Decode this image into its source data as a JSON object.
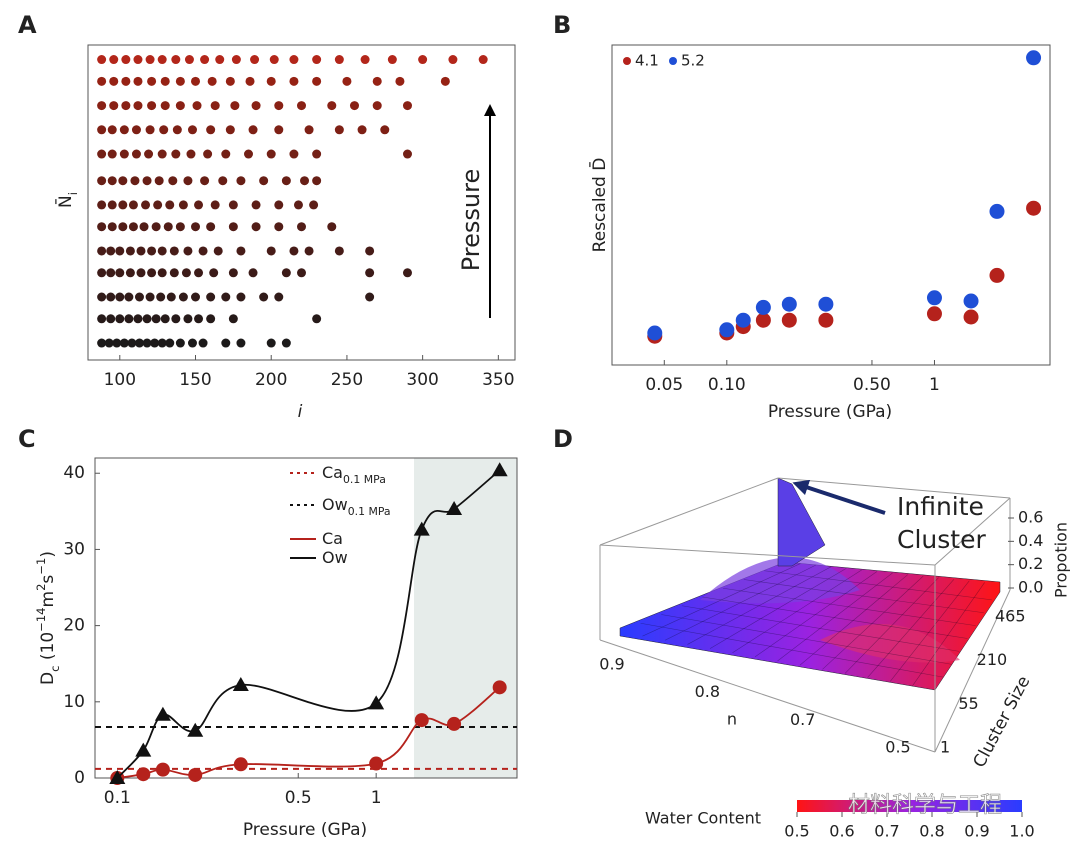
{
  "chart_data": [
    {
      "panel": "A",
      "type": "scatter",
      "xlabel": "i",
      "ylabel": [
        "N̄",
        "i"
      ],
      "annotation": "Pressure",
      "xlim": [
        79,
        361
      ],
      "xticks": [
        100,
        150,
        200,
        250,
        300,
        350
      ],
      "ylim": [
        0,
        13
      ],
      "series": [
        {
          "color": "#1c1a1a",
          "x": [
            88,
            93,
            98,
            103,
            108,
            113,
            118,
            123,
            128,
            133,
            140,
            148,
            155,
            170,
            180,
            200,
            210
          ],
          "values": [
            0.7,
            0.7,
            0.7,
            0.7,
            0.7,
            0.7,
            0.7,
            0.7,
            0.7,
            0.7,
            0.7,
            0.7,
            0.7,
            0.7,
            0.7,
            0.7,
            0.7
          ]
        },
        {
          "color": "#261a19",
          "x": [
            88,
            94,
            100,
            106,
            112,
            118,
            124,
            130,
            137,
            145,
            152,
            160,
            175,
            230
          ],
          "values": [
            1.7,
            1.7,
            1.7,
            1.7,
            1.7,
            1.7,
            1.7,
            1.7,
            1.7,
            1.7,
            1.7,
            1.7,
            1.7,
            1.7
          ]
        },
        {
          "color": "#311b19",
          "x": [
            88,
            94,
            100,
            106,
            113,
            120,
            127,
            134,
            142,
            150,
            160,
            170,
            180,
            195,
            205,
            265
          ],
          "values": [
            2.6,
            2.6,
            2.6,
            2.6,
            2.6,
            2.6,
            2.6,
            2.6,
            2.6,
            2.6,
            2.6,
            2.6,
            2.6,
            2.6,
            2.6,
            2.6
          ]
        },
        {
          "color": "#3c1b18",
          "x": [
            88,
            94,
            100,
            107,
            114,
            121,
            128,
            136,
            144,
            152,
            162,
            175,
            188,
            210,
            220,
            265,
            290
          ],
          "values": [
            3.6,
            3.6,
            3.6,
            3.6,
            3.6,
            3.6,
            3.6,
            3.6,
            3.6,
            3.6,
            3.6,
            3.6,
            3.6,
            3.6,
            3.6,
            3.6,
            3.6
          ]
        },
        {
          "color": "#471c18",
          "x": [
            88,
            94,
            100,
            107,
            114,
            121,
            128,
            136,
            145,
            155,
            165,
            180,
            200,
            215,
            225,
            245,
            265
          ],
          "values": [
            4.5,
            4.5,
            4.5,
            4.5,
            4.5,
            4.5,
            4.5,
            4.5,
            4.5,
            4.5,
            4.5,
            4.5,
            4.5,
            4.5,
            4.5,
            4.5,
            4.5
          ]
        },
        {
          "color": "#521d17",
          "x": [
            88,
            95,
            102,
            109,
            116,
            124,
            132,
            140,
            150,
            160,
            175,
            190,
            205,
            220,
            240
          ],
          "values": [
            5.5,
            5.5,
            5.5,
            5.5,
            5.5,
            5.5,
            5.5,
            5.5,
            5.5,
            5.5,
            5.5,
            5.5,
            5.5,
            5.5,
            5.5
          ]
        },
        {
          "color": "#5d1e17",
          "x": [
            88,
            95,
            102,
            109,
            117,
            125,
            133,
            142,
            152,
            163,
            175,
            190,
            205,
            218,
            228
          ],
          "values": [
            6.4,
            6.4,
            6.4,
            6.4,
            6.4,
            6.4,
            6.4,
            6.4,
            6.4,
            6.4,
            6.4,
            6.4,
            6.4,
            6.4,
            6.4
          ]
        },
        {
          "color": "#681f16",
          "x": [
            88,
            95,
            102,
            110,
            118,
            126,
            135,
            145,
            156,
            168,
            180,
            195,
            210,
            222,
            230
          ],
          "values": [
            7.4,
            7.4,
            7.4,
            7.4,
            7.4,
            7.4,
            7.4,
            7.4,
            7.4,
            7.4,
            7.4,
            7.4,
            7.4,
            7.4,
            7.4
          ]
        },
        {
          "color": "#732016",
          "x": [
            88,
            95,
            103,
            111,
            119,
            128,
            137,
            147,
            158,
            170,
            185,
            200,
            215,
            230,
            290
          ],
          "values": [
            8.5,
            8.5,
            8.5,
            8.5,
            8.5,
            8.5,
            8.5,
            8.5,
            8.5,
            8.5,
            8.5,
            8.5,
            8.5,
            8.5,
            8.5
          ]
        },
        {
          "color": "#7e2015",
          "x": [
            88,
            95,
            103,
            111,
            120,
            129,
            138,
            148,
            160,
            173,
            188,
            205,
            225,
            245,
            260,
            275
          ],
          "values": [
            9.5,
            9.5,
            9.5,
            9.5,
            9.5,
            9.5,
            9.5,
            9.5,
            9.5,
            9.5,
            9.5,
            9.5,
            9.5,
            9.5,
            9.5,
            9.5
          ]
        },
        {
          "color": "#892115",
          "x": [
            88,
            96,
            104,
            112,
            121,
            130,
            140,
            151,
            163,
            176,
            190,
            205,
            220,
            240,
            255,
            270,
            290
          ],
          "values": [
            10.5,
            10.5,
            10.5,
            10.5,
            10.5,
            10.5,
            10.5,
            10.5,
            10.5,
            10.5,
            10.5,
            10.5,
            10.5,
            10.5,
            10.5,
            10.5,
            10.5
          ]
        },
        {
          "color": "#962214",
          "x": [
            88,
            96,
            104,
            112,
            121,
            130,
            140,
            150,
            161,
            173,
            186,
            200,
            215,
            230,
            250,
            270,
            285,
            315
          ],
          "values": [
            11.5,
            11.5,
            11.5,
            11.5,
            11.5,
            11.5,
            11.5,
            11.5,
            11.5,
            11.5,
            11.5,
            11.5,
            11.5,
            11.5,
            11.5,
            11.5,
            11.5,
            11.5
          ]
        },
        {
          "color": "#b3261a",
          "x": [
            88,
            96,
            104,
            112,
            120,
            128,
            137,
            146,
            156,
            166,
            177,
            189,
            202,
            215,
            230,
            245,
            262,
            280,
            300,
            320,
            340
          ],
          "values": [
            12.4,
            12.4,
            12.4,
            12.4,
            12.4,
            12.4,
            12.4,
            12.4,
            12.4,
            12.4,
            12.4,
            12.4,
            12.4,
            12.4,
            12.4,
            12.4,
            12.4,
            12.4,
            12.4,
            12.4,
            12.4
          ]
        }
      ]
    },
    {
      "panel": "B",
      "type": "scatter",
      "xlabel": "Pressure (GPa)",
      "ylabel": "Rescaled D̄",
      "xscale": "log",
      "xlim": [
        0.028,
        3.6
      ],
      "xticks": [
        0.05,
        {
          "value": 0.1,
          "label": "0.10"
        },
        {
          "value": 0.5,
          "label": "0.50"
        },
        1
      ],
      "ylim": [
        0,
        1
      ],
      "legend": "top-left",
      "series": [
        {
          "name": "4.1",
          "color": "#b5221c",
          "x": [
            0.045,
            0.1,
            0.12,
            0.15,
            0.2,
            0.3,
            1,
            1.5,
            2,
            3
          ],
          "values": [
            0.09,
            0.1,
            0.12,
            0.14,
            0.14,
            0.14,
            0.16,
            0.15,
            0.28,
            0.49
          ]
        },
        {
          "name": "5.2",
          "color": "#1f4fd6",
          "x": [
            0.045,
            0.1,
            0.12,
            0.15,
            0.2,
            0.3,
            1,
            1.5,
            2,
            3
          ],
          "values": [
            0.1,
            0.11,
            0.14,
            0.18,
            0.19,
            0.19,
            0.21,
            0.2,
            0.48,
            0.96
          ]
        }
      ]
    },
    {
      "panel": "C",
      "type": "line",
      "xlabel": "Pressure (GPa)",
      "ylabel": [
        "D",
        "c",
        " (10",
        "−14",
        "m",
        "2",
        "s",
        "−1",
        ")"
      ],
      "xscale": "log",
      "xlim": [
        0.082,
        3.5
      ],
      "xticks": [
        0.1,
        0.5,
        1
      ],
      "ylim": [
        0,
        42
      ],
      "yticks": [
        0,
        10,
        20,
        30,
        40
      ],
      "shade": [
        1.4,
        3.5
      ],
      "shade_color": "#e6ecea",
      "reference_lines": [
        {
          "name": "Ca",
          "subscript": "0.1 MPa",
          "value": 1.2,
          "color": "#b5221c"
        },
        {
          "name": "Ow",
          "subscript": "0.1 MPa",
          "value": 6.7,
          "color": "#111111"
        }
      ],
      "series": [
        {
          "name": "Ca",
          "color": "#b5221c",
          "marker": "circle",
          "x": [
            0.1,
            0.126,
            0.15,
            0.2,
            0.3,
            1,
            1.5,
            2,
            3
          ],
          "values": [
            0,
            0.5,
            1.1,
            0.4,
            1.8,
            1.9,
            7.6,
            7.1,
            11.9
          ]
        },
        {
          "name": "Ow",
          "color": "#111111",
          "marker": "triangle",
          "x": [
            0.1,
            0.126,
            0.15,
            0.2,
            0.3,
            1,
            1.5,
            2,
            3
          ],
          "values": [
            0,
            3.6,
            8.3,
            6.2,
            12.2,
            9.8,
            32.6,
            35.3,
            40.4
          ]
        }
      ]
    },
    {
      "panel": "D",
      "type": "surface3d",
      "annotation": [
        "Infinite",
        "Cluster"
      ],
      "zlabel": "Propotion",
      "zticks": [
        0.6,
        0.4,
        0.2,
        {
          "value": 0,
          "label": "0.0"
        }
      ],
      "ylabel": "Cluster Size",
      "yticks": [
        465,
        210,
        55,
        1
      ],
      "xlabel": "n",
      "xticks": [
        0.9,
        0.8,
        0.7,
        0.5
      ],
      "colorbar": {
        "label": "Water Content",
        "clim": [
          0.5,
          1.0
        ],
        "ticks": [
          0.5,
          0.6,
          0.7,
          0.8,
          0.9,
          {
            "value": 1,
            "label": "1.0"
          }
        ],
        "colors": [
          "#ff1414",
          "#9b22e0",
          "#2a3cff"
        ]
      },
      "watermark": "材料科学与工程"
    }
  ]
}
